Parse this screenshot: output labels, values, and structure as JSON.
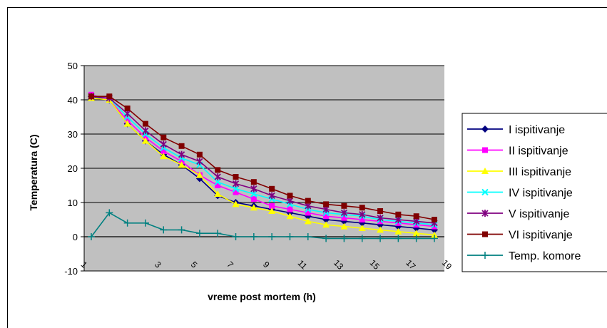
{
  "chart_data": {
    "type": "line",
    "xlabel": "vreme post mortem (h)",
    "ylabel": "Temperatura (C)",
    "ylim": [
      -10,
      50
    ],
    "yticks": [
      -10,
      0,
      10,
      20,
      30,
      40,
      50
    ],
    "x": [
      1,
      2,
      3,
      4,
      5,
      6,
      7,
      8,
      9,
      10,
      11,
      12,
      13,
      14,
      15,
      16,
      17,
      18,
      19,
      20
    ],
    "xtick_labels": [
      "1",
      "3",
      "5",
      "7",
      "9",
      "11",
      "13",
      "15",
      "17",
      "19"
    ],
    "grid": true,
    "legend_position": "right",
    "plot_background": "#c0c0c0",
    "series": [
      {
        "name": "I ispitivanje",
        "color": "#000080",
        "marker": "diamond",
        "values": [
          41,
          40,
          33,
          28,
          24,
          21,
          17,
          12,
          10,
          9,
          8,
          7,
          6,
          5,
          4.5,
          4,
          3.5,
          3,
          2.5,
          2
        ]
      },
      {
        "name": "II ispitivanje",
        "color": "#ff00ff",
        "marker": "square",
        "values": [
          41.5,
          40,
          34,
          29,
          25,
          22,
          18,
          15,
          13,
          11,
          9,
          8,
          7,
          6,
          5.5,
          5,
          4.5,
          4,
          3.5,
          3
        ]
      },
      {
        "name": "III ispitivanje",
        "color": "#ffff00",
        "marker": "triangle",
        "values": [
          40.5,
          40,
          33,
          28,
          23.5,
          21,
          18,
          12.5,
          9.5,
          8.5,
          7.5,
          6,
          4.5,
          3.5,
          3,
          2.5,
          2,
          1.5,
          1,
          0.5
        ]
      },
      {
        "name": "IV ispitivanje",
        "color": "#00ffff",
        "marker": "x",
        "values": [
          41,
          40.5,
          35,
          30,
          26,
          23,
          21,
          16,
          14,
          12.5,
          11,
          9.5,
          8,
          7,
          6.5,
          6,
          5,
          4.5,
          4,
          3.5
        ]
      },
      {
        "name": "V ispitivanje",
        "color": "#800080",
        "marker": "star",
        "values": [
          41,
          40.5,
          36,
          31,
          27,
          24,
          22,
          17.5,
          15.5,
          14,
          12,
          10.5,
          9,
          8,
          7,
          6.5,
          5.5,
          5,
          4.5,
          4
        ]
      },
      {
        "name": "VI ispitivanje",
        "color": "#800000",
        "marker": "square",
        "values": [
          41,
          41,
          37.5,
          33,
          29,
          26.5,
          24,
          19.5,
          17.5,
          16,
          14,
          12,
          10.5,
          9.5,
          9,
          8.5,
          7.5,
          6.5,
          6,
          5
        ]
      },
      {
        "name": "Temp. komore",
        "color": "#008080",
        "marker": "plus",
        "values": [
          0,
          7,
          4,
          4,
          2,
          2,
          1,
          1,
          0,
          0,
          0,
          0,
          0,
          -0.5,
          -0.5,
          -0.5,
          -0.5,
          -0.5,
          -0.5,
          -0.5
        ]
      }
    ]
  }
}
